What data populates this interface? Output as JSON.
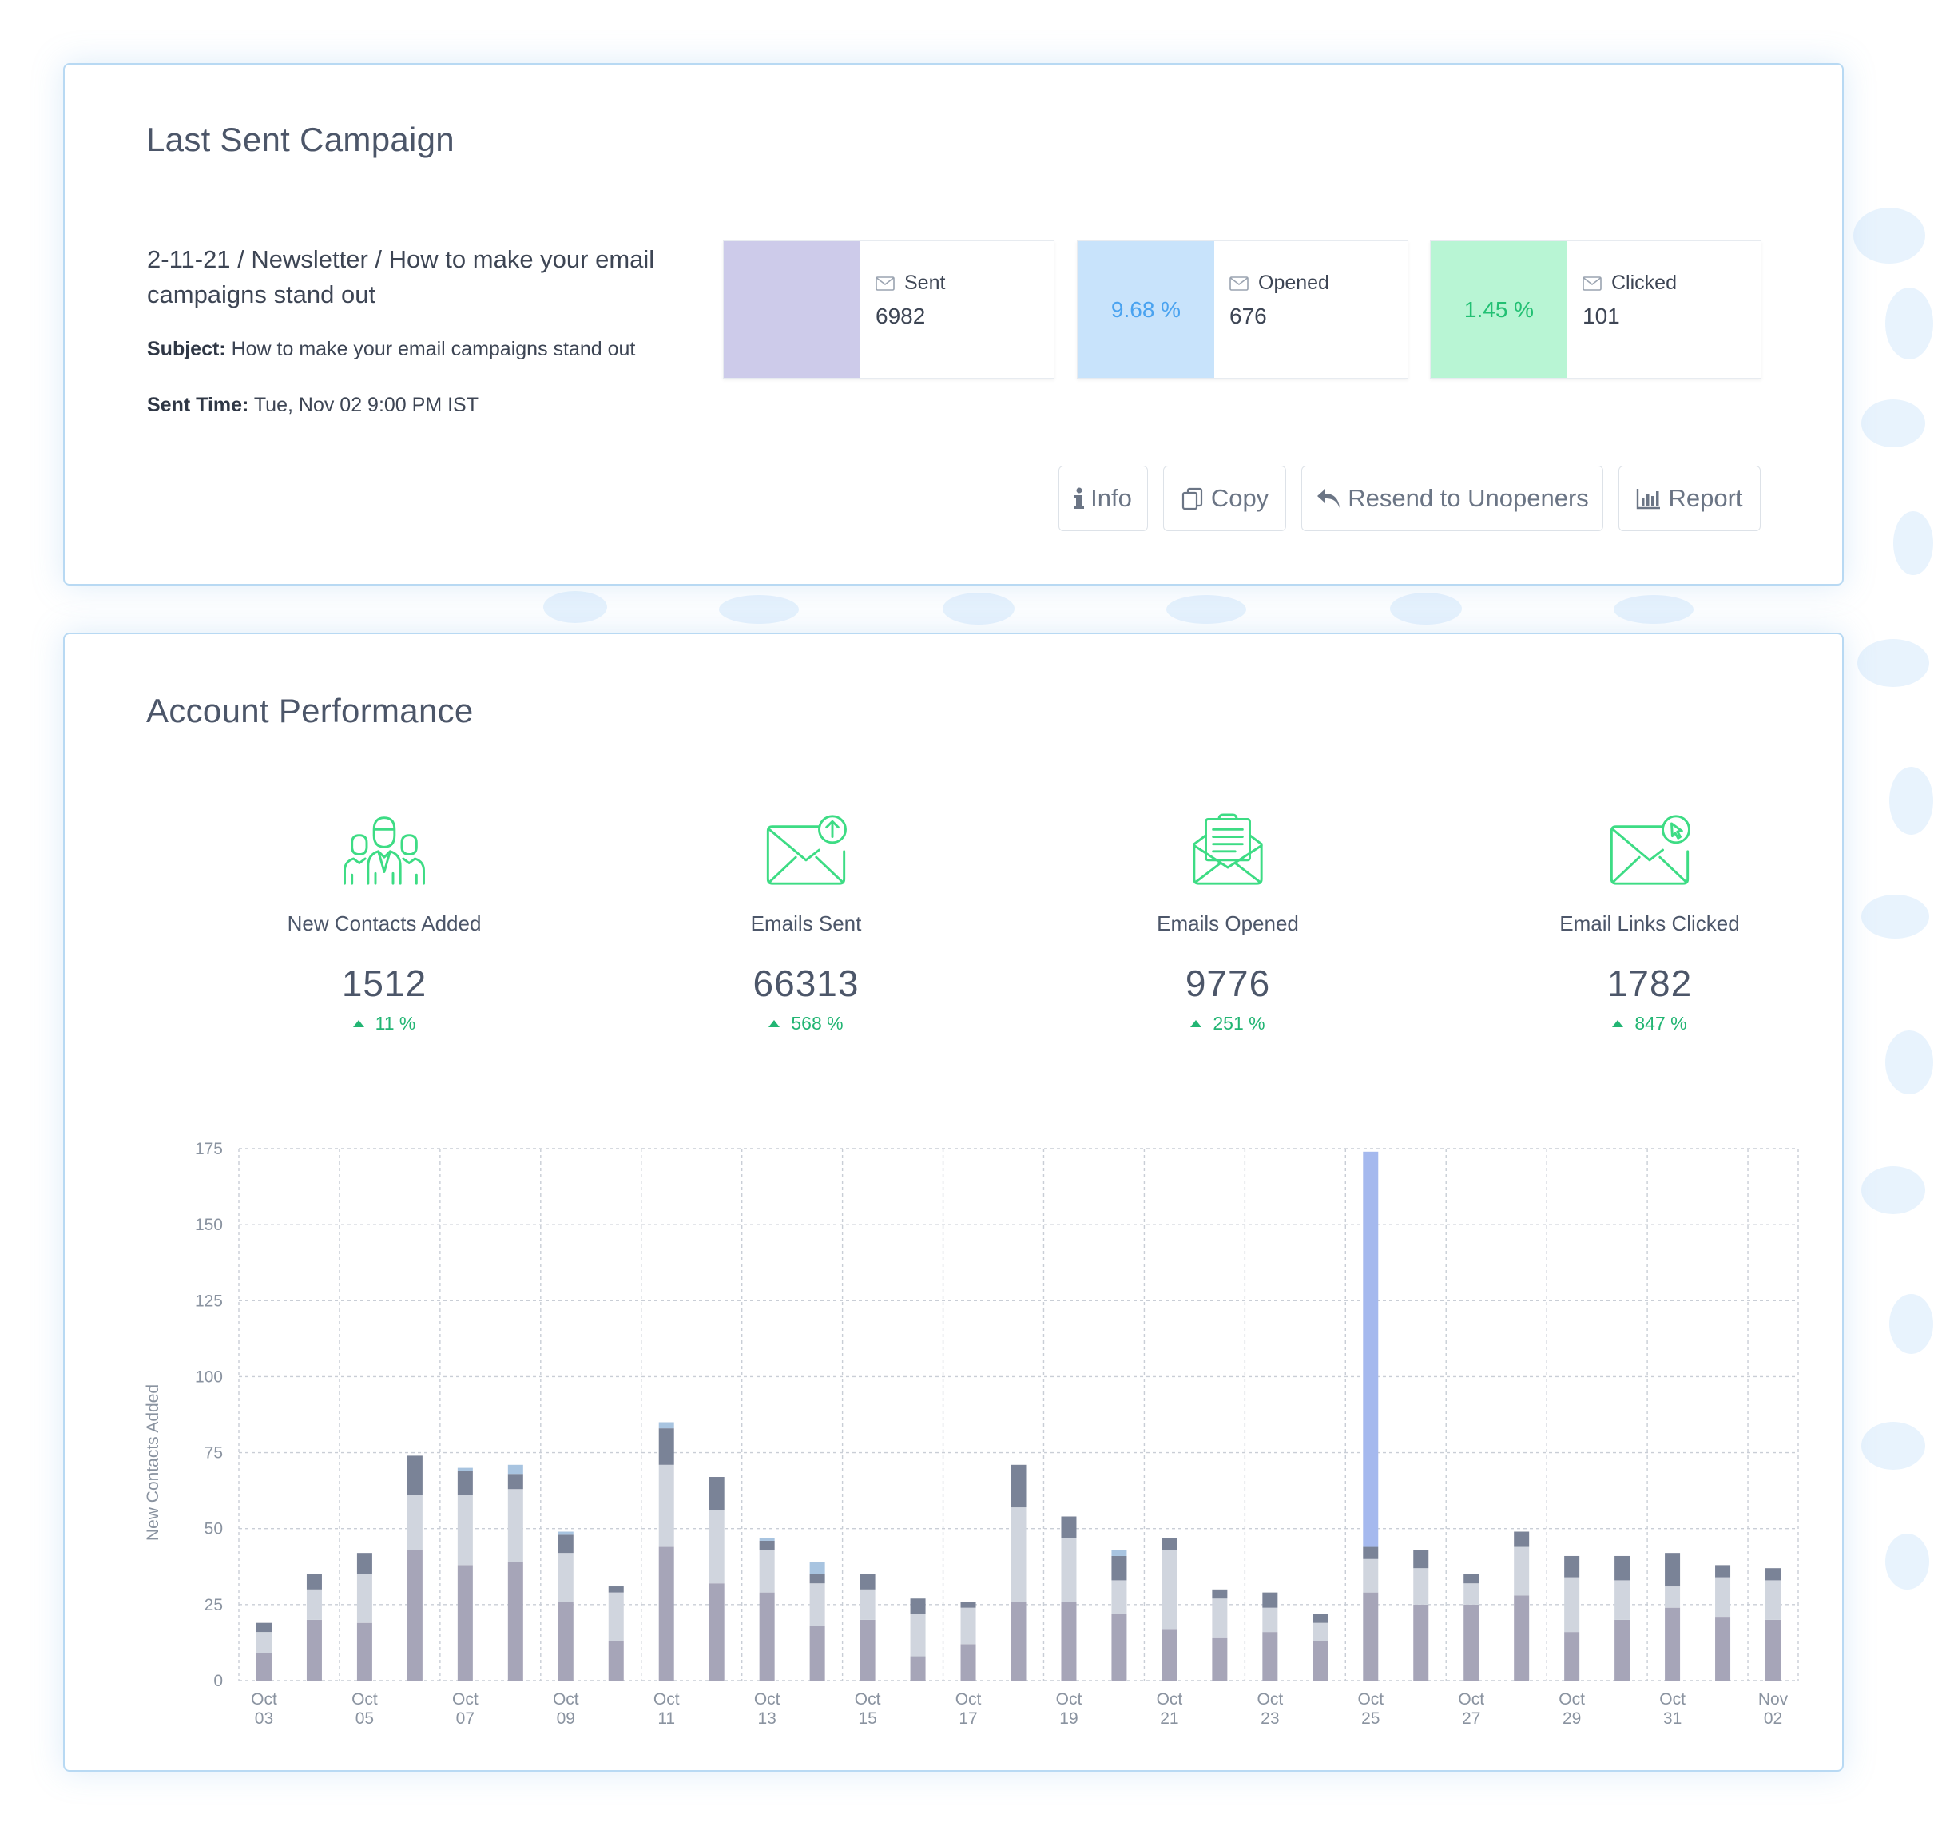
{
  "colors": {
    "card_border": "#b8d9f3",
    "sent_swatch": "#cdcbea",
    "opened_swatch": "#c8e3fb",
    "clicked_swatch": "#b8f5d4",
    "opened_text": "#4aa3f0",
    "clicked_text": "#22c073",
    "icon_green": "#3ddc84",
    "positive": "#22b573",
    "bar_bottom": "#a6a5b8",
    "bar_middle": "#d0d5de",
    "bar_top": "#7a8397",
    "bar_extra": "#a8c4e0",
    "bar_highlight": "#a5b9ee"
  },
  "last_campaign": {
    "title": "Last Sent Campaign",
    "name": "2-11-21 / Newsletter / How to make your email campaigns stand out",
    "subject_label": "Subject:",
    "subject_value": "How to make your email campaigns stand out",
    "sent_time_label": "Sent Time:",
    "sent_time_value": "Tue, Nov 02 9:00 PM IST",
    "stats": [
      {
        "label": "Sent",
        "value": "6982",
        "percent": "",
        "icon": "envelope-icon"
      },
      {
        "label": "Opened",
        "value": "676",
        "percent": "9.68 %",
        "icon": "envelope-icon"
      },
      {
        "label": "Clicked",
        "value": "101",
        "percent": "1.45 %",
        "icon": "envelope-icon"
      }
    ],
    "buttons": {
      "info": {
        "label": "Info",
        "icon": "info-icon"
      },
      "copy": {
        "label": "Copy",
        "icon": "copy-icon"
      },
      "resend": {
        "label": "Resend to Unopeners",
        "icon": "reply-icon"
      },
      "report": {
        "label": "Report",
        "icon": "bar-chart-icon"
      }
    }
  },
  "account_performance": {
    "title": "Account Performance",
    "metrics": [
      {
        "label": "New Contacts Added",
        "value": "1512",
        "change": "11 %",
        "icon": "contacts-group-icon"
      },
      {
        "label": "Emails Sent",
        "value": "66313",
        "change": "568 %",
        "icon": "envelope-upload-icon"
      },
      {
        "label": "Emails Opened",
        "value": "9776",
        "change": "251 %",
        "icon": "envelope-open-icon"
      },
      {
        "label": "Email Links Clicked",
        "value": "1782",
        "change": "847 %",
        "icon": "envelope-click-icon"
      }
    ]
  },
  "chart_data": {
    "type": "bar",
    "stacked": true,
    "ylabel": "New Contacts Added",
    "ylim": [
      0,
      175
    ],
    "yticks": [
      0,
      25,
      50,
      75,
      100,
      125,
      150,
      175
    ],
    "grid": true,
    "x_tick_labels": [
      [
        "Oct",
        "03"
      ],
      [
        "Oct",
        "05"
      ],
      [
        "Oct",
        "07"
      ],
      [
        "Oct",
        "09"
      ],
      [
        "Oct",
        "11"
      ],
      [
        "Oct",
        "13"
      ],
      [
        "Oct",
        "15"
      ],
      [
        "Oct",
        "17"
      ],
      [
        "Oct",
        "19"
      ],
      [
        "Oct",
        "21"
      ],
      [
        "Oct",
        "23"
      ],
      [
        "Oct",
        "25"
      ],
      [
        "Oct",
        "27"
      ],
      [
        "Oct",
        "29"
      ],
      [
        "Oct",
        "31"
      ],
      [
        "Nov",
        "02"
      ]
    ],
    "categories": [
      "Oct 03",
      "Oct 04",
      "Oct 05",
      "Oct 06",
      "Oct 07",
      "Oct 08",
      "Oct 09",
      "Oct 10",
      "Oct 11",
      "Oct 12",
      "Oct 13",
      "Oct 14",
      "Oct 15",
      "Oct 16",
      "Oct 17",
      "Oct 18",
      "Oct 19",
      "Oct 20",
      "Oct 21",
      "Oct 22",
      "Oct 23",
      "Oct 24",
      "Oct 25",
      "Oct 26",
      "Oct 27",
      "Oct 28",
      "Oct 29",
      "Oct 30",
      "Oct 31",
      "Nov 01",
      "Nov 02"
    ],
    "series": [
      {
        "values": [
          9,
          20,
          19,
          43,
          38,
          39,
          26,
          13,
          44,
          32,
          29,
          18,
          20,
          8,
          12,
          26,
          26,
          22,
          17,
          14,
          16,
          13,
          29,
          25,
          25,
          28,
          16,
          20,
          24,
          21,
          20
        ]
      },
      {
        "values": [
          7,
          10,
          16,
          18,
          23,
          24,
          16,
          16,
          27,
          24,
          14,
          14,
          10,
          14,
          12,
          31,
          21,
          11,
          26,
          13,
          8,
          6,
          11,
          12,
          7,
          16,
          18,
          13,
          7,
          13,
          13
        ]
      },
      {
        "values": [
          3,
          5,
          7,
          13,
          8,
          5,
          6,
          2,
          12,
          11,
          3,
          3,
          5,
          5,
          2,
          14,
          7,
          8,
          4,
          3,
          5,
          3,
          4,
          6,
          3,
          5,
          7,
          8,
          11,
          4,
          4
        ]
      },
      {
        "values": [
          0,
          0,
          0,
          0,
          1,
          3,
          1,
          0,
          2,
          0,
          1,
          4,
          0,
          0,
          0,
          0,
          0,
          2,
          0,
          0,
          0,
          0,
          130,
          0,
          0,
          0,
          0,
          0,
          0,
          0,
          0
        ]
      }
    ]
  }
}
